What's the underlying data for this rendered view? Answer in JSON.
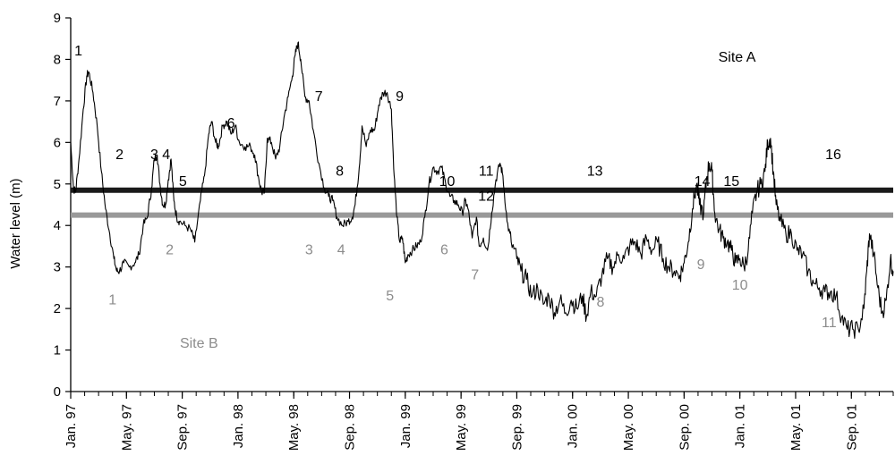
{
  "chart_data": {
    "type": "line",
    "ylabel": "Water level (m)",
    "xlabel": "",
    "ylim": [
      0,
      9
    ],
    "yticks": [
      "0",
      "1",
      "2",
      "3",
      "4",
      "5",
      "6",
      "7",
      "8",
      "9"
    ],
    "xlim": [
      0,
      59
    ],
    "xticks": [
      {
        "m": 0,
        "label": "Jan. 97"
      },
      {
        "m": 4,
        "label": "May. 97"
      },
      {
        "m": 8,
        "label": "Sep. 97"
      },
      {
        "m": 12,
        "label": "Jan. 98"
      },
      {
        "m": 16,
        "label": "May. 98"
      },
      {
        "m": 20,
        "label": "Sep. 98"
      },
      {
        "m": 24,
        "label": "Jan. 99"
      },
      {
        "m": 28,
        "label": "May. 99"
      },
      {
        "m": 32,
        "label": "Sep. 99"
      },
      {
        "m": 36,
        "label": "Jan. 00"
      },
      {
        "m": 40,
        "label": "May. 00"
      },
      {
        "m": 44,
        "label": "Sep. 00"
      },
      {
        "m": 48,
        "label": "Jan. 01"
      },
      {
        "m": 52,
        "label": "May. 01"
      },
      {
        "m": 56,
        "label": "Sep. 01"
      }
    ],
    "series": [
      {
        "color": "#000000",
        "points": [
          [
            0.0,
            6.0
          ],
          [
            0.2,
            4.9
          ],
          [
            0.35,
            4.8
          ],
          [
            0.6,
            5.6
          ],
          [
            0.9,
            6.8
          ],
          [
            1.15,
            7.6
          ],
          [
            1.3,
            7.7
          ],
          [
            1.6,
            7.2
          ],
          [
            1.9,
            6.4
          ],
          [
            2.2,
            5.3
          ],
          [
            2.5,
            4.4
          ],
          [
            2.8,
            3.8
          ],
          [
            3.1,
            3.2
          ],
          [
            3.3,
            2.9
          ],
          [
            3.5,
            2.9
          ],
          [
            3.8,
            3.1
          ],
          [
            4.2,
            3.0
          ],
          [
            4.6,
            3.1
          ],
          [
            4.9,
            3.3
          ],
          [
            5.2,
            4.0
          ],
          [
            5.5,
            4.2
          ],
          [
            5.8,
            4.9
          ],
          [
            6.0,
            5.6
          ],
          [
            6.2,
            5.7
          ],
          [
            6.4,
            5.0
          ],
          [
            6.6,
            4.5
          ],
          [
            6.8,
            4.5
          ],
          [
            7.0,
            5.1
          ],
          [
            7.2,
            5.6
          ],
          [
            7.4,
            4.6
          ],
          [
            7.6,
            4.2
          ],
          [
            7.8,
            4.1
          ],
          [
            8.2,
            4.0
          ],
          [
            8.6,
            3.9
          ],
          [
            8.9,
            3.6
          ],
          [
            9.3,
            4.6
          ],
          [
            9.6,
            5.2
          ],
          [
            9.9,
            6.2
          ],
          [
            10.1,
            6.5
          ],
          [
            10.4,
            6.0
          ],
          [
            10.6,
            5.9
          ],
          [
            10.9,
            6.4
          ],
          [
            11.2,
            6.5
          ],
          [
            11.5,
            6.2
          ],
          [
            11.8,
            6.4
          ],
          [
            12.1,
            6.0
          ],
          [
            12.5,
            5.9
          ],
          [
            12.9,
            5.9
          ],
          [
            13.2,
            5.7
          ],
          [
            13.5,
            5.1
          ],
          [
            13.7,
            4.8
          ],
          [
            13.9,
            4.8
          ],
          [
            14.1,
            6.1
          ],
          [
            14.4,
            6.0
          ],
          [
            14.7,
            5.6
          ],
          [
            15.0,
            5.9
          ],
          [
            15.3,
            6.6
          ],
          [
            15.6,
            7.1
          ],
          [
            15.9,
            7.6
          ],
          [
            16.1,
            8.1
          ],
          [
            16.3,
            8.4
          ],
          [
            16.5,
            8.0
          ],
          [
            16.8,
            7.1
          ],
          [
            17.1,
            7.0
          ],
          [
            17.4,
            6.3
          ],
          [
            17.8,
            5.5
          ],
          [
            18.2,
            4.9
          ],
          [
            18.5,
            4.7
          ],
          [
            18.8,
            4.6
          ],
          [
            19.1,
            4.2
          ],
          [
            19.5,
            4.0
          ],
          [
            19.9,
            4.1
          ],
          [
            20.2,
            4.2
          ],
          [
            20.4,
            4.5
          ],
          [
            20.7,
            5.4
          ],
          [
            20.9,
            6.4
          ],
          [
            21.2,
            5.9
          ],
          [
            21.5,
            6.3
          ],
          [
            21.8,
            6.3
          ],
          [
            22.1,
            6.9
          ],
          [
            22.4,
            7.2
          ],
          [
            22.7,
            7.2
          ],
          [
            23.0,
            6.8
          ],
          [
            23.2,
            5.2
          ],
          [
            23.4,
            4.2
          ],
          [
            23.6,
            3.6
          ],
          [
            23.8,
            3.7
          ],
          [
            24.0,
            3.1
          ],
          [
            24.2,
            3.3
          ],
          [
            24.5,
            3.4
          ],
          [
            24.8,
            3.5
          ],
          [
            25.1,
            3.6
          ],
          [
            25.4,
            4.2
          ],
          [
            25.7,
            5.0
          ],
          [
            26.0,
            5.4
          ],
          [
            26.3,
            5.3
          ],
          [
            26.6,
            5.4
          ],
          [
            26.9,
            5.0
          ],
          [
            27.2,
            4.7
          ],
          [
            27.5,
            4.6
          ],
          [
            27.8,
            4.5
          ],
          [
            28.1,
            4.3
          ],
          [
            28.3,
            4.6
          ],
          [
            28.5,
            4.4
          ],
          [
            28.8,
            3.7
          ],
          [
            29.1,
            4.2
          ],
          [
            29.3,
            3.5
          ],
          [
            29.6,
            3.7
          ],
          [
            29.9,
            3.4
          ],
          [
            30.2,
            4.3
          ],
          [
            30.5,
            5.1
          ],
          [
            30.8,
            5.5
          ],
          [
            31.0,
            5.2
          ],
          [
            31.3,
            4.1
          ],
          [
            31.6,
            3.6
          ],
          [
            32.0,
            3.2
          ],
          [
            32.3,
            2.9
          ],
          [
            32.7,
            2.7
          ],
          [
            33.1,
            2.3
          ],
          [
            33.5,
            2.5
          ],
          [
            33.9,
            2.1
          ],
          [
            34.3,
            2.3
          ],
          [
            34.7,
            1.9
          ],
          [
            35.1,
            2.2
          ],
          [
            35.5,
            1.9
          ],
          [
            35.9,
            2.2
          ],
          [
            36.3,
            2.0
          ],
          [
            36.7,
            2.3
          ],
          [
            37.0,
            1.8
          ],
          [
            37.3,
            2.4
          ],
          [
            37.7,
            2.3
          ],
          [
            38.1,
            2.8
          ],
          [
            38.5,
            3.2
          ],
          [
            38.9,
            3.0
          ],
          [
            39.3,
            3.3
          ],
          [
            39.7,
            3.2
          ],
          [
            40.1,
            3.5
          ],
          [
            40.5,
            3.6
          ],
          [
            40.9,
            3.3
          ],
          [
            41.3,
            3.7
          ],
          [
            41.7,
            3.4
          ],
          [
            42.1,
            3.6
          ],
          [
            42.5,
            3.2
          ],
          [
            42.9,
            3.0
          ],
          [
            43.3,
            2.9
          ],
          [
            43.7,
            2.8
          ],
          [
            44.0,
            3.1
          ],
          [
            44.3,
            3.6
          ],
          [
            44.6,
            4.4
          ],
          [
            44.9,
            5.0
          ],
          [
            45.1,
            4.5
          ],
          [
            45.4,
            4.3
          ],
          [
            45.6,
            5.1
          ],
          [
            45.8,
            5.5
          ],
          [
            46.0,
            5.3
          ],
          [
            46.2,
            4.3
          ],
          [
            46.5,
            3.9
          ],
          [
            46.8,
            3.7
          ],
          [
            47.1,
            3.6
          ],
          [
            47.4,
            3.4
          ],
          [
            47.7,
            3.1
          ],
          [
            48.0,
            3.2
          ],
          [
            48.3,
            3.0
          ],
          [
            48.6,
            3.4
          ],
          [
            48.9,
            4.3
          ],
          [
            49.2,
            4.8
          ],
          [
            49.5,
            5.0
          ],
          [
            49.8,
            5.3
          ],
          [
            50.0,
            6.0
          ],
          [
            50.2,
            6.1
          ],
          [
            50.4,
            5.3
          ],
          [
            50.6,
            4.5
          ],
          [
            50.9,
            4.1
          ],
          [
            51.3,
            3.8
          ],
          [
            51.7,
            3.8
          ],
          [
            52.1,
            3.4
          ],
          [
            52.5,
            3.3
          ],
          [
            52.9,
            2.9
          ],
          [
            53.3,
            2.6
          ],
          [
            53.7,
            2.5
          ],
          [
            54.1,
            2.4
          ],
          [
            54.5,
            2.4
          ],
          [
            54.9,
            2.3
          ],
          [
            55.3,
            1.8
          ],
          [
            55.7,
            1.5
          ],
          [
            56.1,
            1.5
          ],
          [
            56.5,
            1.5
          ],
          [
            56.9,
            2.0
          ],
          [
            57.1,
            2.9
          ],
          [
            57.3,
            3.8
          ],
          [
            57.6,
            3.3
          ],
          [
            57.9,
            2.5
          ],
          [
            58.2,
            1.9
          ],
          [
            58.5,
            2.2
          ],
          [
            58.8,
            3.2
          ],
          [
            59.0,
            2.9
          ]
        ]
      }
    ],
    "reference_lines": [
      {
        "y": 4.85,
        "color": "#1a1a1a"
      },
      {
        "y": 4.25,
        "color": "#999999"
      }
    ],
    "annotations": [
      {
        "text": "Site   A",
        "m": 47.8,
        "y": 7.95,
        "group": "a"
      },
      {
        "text": "Site B",
        "m": 9.2,
        "y": 1.05,
        "group": "b"
      },
      {
        "text": "1",
        "m": 0.55,
        "y": 8.1,
        "group": "a"
      },
      {
        "text": "2",
        "m": 3.5,
        "y": 5.6,
        "group": "a"
      },
      {
        "text": "3",
        "m": 6.0,
        "y": 5.6,
        "group": "a"
      },
      {
        "text": "4",
        "m": 6.85,
        "y": 5.6,
        "group": "a"
      },
      {
        "text": "5",
        "m": 8.05,
        "y": 4.95,
        "group": "a"
      },
      {
        "text": "6",
        "m": 11.5,
        "y": 6.35,
        "group": "a"
      },
      {
        "text": "7",
        "m": 17.8,
        "y": 7.0,
        "group": "a"
      },
      {
        "text": "8",
        "m": 19.3,
        "y": 5.2,
        "group": "a"
      },
      {
        "text": "9",
        "m": 23.6,
        "y": 7.0,
        "group": "a"
      },
      {
        "text": "10",
        "m": 27.0,
        "y": 4.95,
        "group": "a"
      },
      {
        "text": "11",
        "m": 29.8,
        "y": 5.2,
        "group": "a"
      },
      {
        "text": "12",
        "m": 29.8,
        "y": 4.6,
        "group": "a"
      },
      {
        "text": "13",
        "m": 37.6,
        "y": 5.2,
        "group": "a"
      },
      {
        "text": "14",
        "m": 45.3,
        "y": 4.95,
        "group": "a"
      },
      {
        "text": "15",
        "m": 47.4,
        "y": 4.95,
        "group": "a"
      },
      {
        "text": "16",
        "m": 54.7,
        "y": 5.6,
        "group": "a"
      },
      {
        "text": "1",
        "m": 3.0,
        "y": 2.1,
        "group": "b"
      },
      {
        "text": "2",
        "m": 7.1,
        "y": 3.3,
        "group": "b"
      },
      {
        "text": "3",
        "m": 17.1,
        "y": 3.3,
        "group": "b"
      },
      {
        "text": "4",
        "m": 19.4,
        "y": 3.3,
        "group": "b"
      },
      {
        "text": "5",
        "m": 22.9,
        "y": 2.2,
        "group": "b"
      },
      {
        "text": "6",
        "m": 26.8,
        "y": 3.3,
        "group": "b"
      },
      {
        "text": "7",
        "m": 29.0,
        "y": 2.7,
        "group": "b"
      },
      {
        "text": "8",
        "m": 38.0,
        "y": 2.05,
        "group": "b"
      },
      {
        "text": "9",
        "m": 45.2,
        "y": 2.95,
        "group": "b"
      },
      {
        "text": "10",
        "m": 48.0,
        "y": 2.45,
        "group": "b"
      },
      {
        "text": "11",
        "m": 54.4,
        "y": 1.55,
        "group": "b"
      }
    ]
  },
  "colors": {
    "site_a": "#000000",
    "site_b": "#8c8c8c"
  }
}
